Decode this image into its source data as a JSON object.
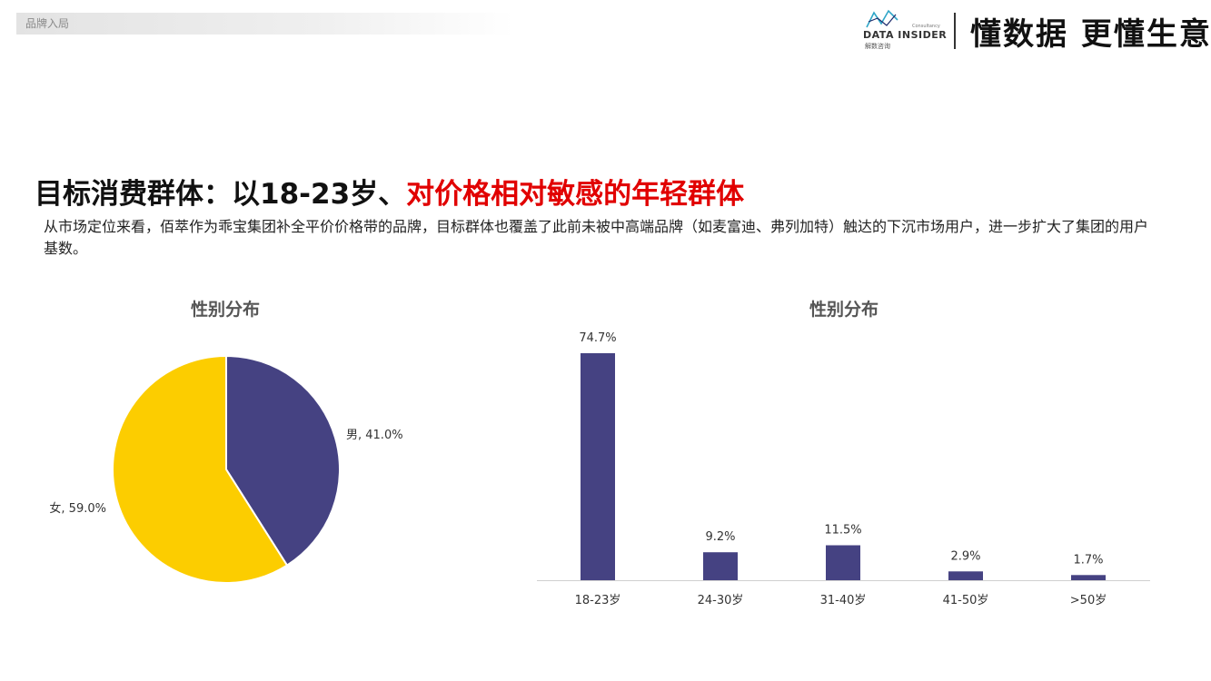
{
  "header": {
    "tag": "品牌入局",
    "logo_text": "DATA INSIDER",
    "logo_sub": "解数咨询",
    "logo_tiny": "Consultancy",
    "slogan": "懂数据 更懂生意"
  },
  "headline": {
    "prefix": "目标消费群体：以18-23岁、",
    "highlight": "对价格相对敏感的年轻群体"
  },
  "description": "从市场定位来看，佰萃作为乖宝集团补全平价价格带的品牌，目标群体也覆盖了此前未被中高端品牌（如麦富迪、弗列加特）触达的下沉市场用户，进一步扩大了集团的用户基数。",
  "colors": {
    "accent_red": "#e10000",
    "navy": "#454282",
    "yellow": "#fccd00"
  },
  "chart_data": [
    {
      "type": "pie",
      "title": "性别分布",
      "slices": [
        {
          "label": "男",
          "value": 41.0,
          "display": "男, 41.0%",
          "color": "#454282"
        },
        {
          "label": "女",
          "value": 59.0,
          "display": "女, 59.0%",
          "color": "#fccd00"
        }
      ]
    },
    {
      "type": "bar",
      "title": "性别分布",
      "categories": [
        "18-23岁",
        "24-30岁",
        "31-40岁",
        "41-50岁",
        ">50岁"
      ],
      "values": [
        74.7,
        9.2,
        11.5,
        2.9,
        1.7
      ],
      "labels": [
        "74.7%",
        "9.2%",
        "11.5%",
        "2.9%",
        "1.7%"
      ],
      "color": "#454282",
      "ylim": [
        0,
        80
      ]
    }
  ]
}
